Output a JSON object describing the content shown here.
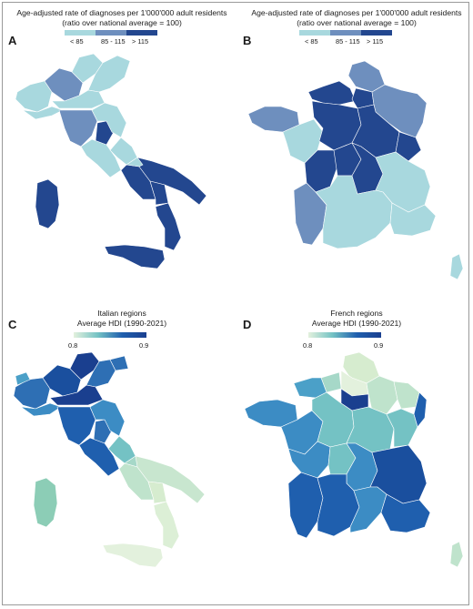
{
  "chart_data": [
    {
      "type": "choropleth",
      "panel_letter": "A",
      "title_line1": "Age-adjusted rate of diagnoses per 1'000'000 adult residents",
      "title_line2": "(ratio over national average = 100)",
      "legend": [
        {
          "label": "< 85",
          "color": "#a8d8de"
        },
        {
          "label": "85 - 115",
          "color": "#6e8fbe"
        },
        {
          "label": "> 115",
          "color": "#23478f"
        }
      ]
    },
    {
      "type": "choropleth",
      "panel_letter": "B",
      "title_line1": "Age-adjusted rate of diagnoses per 1'000'000 adult residents",
      "title_line2": "(ratio over national average = 100)",
      "legend": [
        {
          "label": "< 85",
          "color": "#a8d8de"
        },
        {
          "label": "85 - 115",
          "color": "#6e8fbe"
        },
        {
          "label": "> 115",
          "color": "#23478f"
        }
      ]
    },
    {
      "type": "choropleth",
      "panel_letter": "C",
      "title_line1": "Italian regions",
      "title_line2": "Average HDI (1990-2021)",
      "scale_min": "0.8",
      "scale_max": "0.9",
      "gradient": [
        "#e3f1dd",
        "#74c2c4",
        "#1f5fae",
        "#1a3f8f"
      ]
    },
    {
      "type": "choropleth",
      "panel_letter": "D",
      "title_line1": "French regions",
      "title_line2": "Average HDI (1990-2021)",
      "scale_min": "0.8",
      "scale_max": "0.9",
      "gradient": [
        "#e3f1dd",
        "#74c2c4",
        "#1f5fae",
        "#1a3f8f"
      ]
    }
  ]
}
